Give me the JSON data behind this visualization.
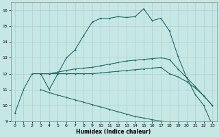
{
  "xlabel": "Humidex (Indice chaleur)",
  "bg_color": "#c5e8e5",
  "grid_color": "#b0cece",
  "line_color": "#1a6b65",
  "xlim": [
    -0.5,
    23.5
  ],
  "ylim": [
    9.0,
    16.5
  ],
  "xticks": [
    0,
    1,
    2,
    3,
    4,
    5,
    6,
    7,
    8,
    9,
    10,
    11,
    12,
    13,
    14,
    15,
    16,
    17,
    18,
    19,
    20,
    21,
    22,
    23
  ],
  "yticks": [
    9,
    10,
    11,
    12,
    13,
    14,
    15,
    16
  ],
  "line1_x": [
    0,
    1,
    2,
    3,
    4,
    5,
    6,
    7,
    8,
    9,
    10,
    11,
    12,
    13,
    14,
    15,
    16,
    17,
    18,
    19,
    20,
    21,
    22,
    23
  ],
  "line1_y": [
    9.5,
    11.0,
    12.0,
    12.0,
    11.0,
    12.0,
    13.0,
    13.5,
    14.4,
    15.25,
    15.5,
    15.5,
    15.6,
    15.55,
    15.6,
    16.1,
    15.35,
    15.5,
    14.7,
    13.1,
    11.75,
    10.7,
    10.0,
    8.75
  ],
  "line2_x": [
    3,
    4,
    5,
    6,
    7,
    8,
    9,
    10,
    11,
    12,
    13,
    14,
    15,
    16,
    17,
    18,
    19,
    20,
    21,
    22,
    23
  ],
  "line2_y": [
    12.0,
    12.0,
    12.1,
    12.2,
    12.3,
    12.35,
    12.4,
    12.5,
    12.6,
    12.7,
    12.8,
    12.85,
    12.9,
    12.95,
    13.0,
    12.9,
    12.3,
    11.75,
    11.2,
    10.6,
    10.0
  ],
  "line3_x": [
    3,
    4,
    5,
    6,
    7,
    8,
    9,
    10,
    11,
    12,
    13,
    14,
    15,
    16,
    17,
    18,
    19,
    20,
    21,
    22,
    23
  ],
  "line3_y": [
    12.0,
    12.0,
    12.0,
    12.0,
    12.0,
    12.0,
    12.0,
    12.05,
    12.1,
    12.15,
    12.2,
    12.25,
    12.3,
    12.35,
    12.4,
    12.0,
    11.8,
    11.5,
    11.1,
    10.6,
    10.0
  ],
  "line4_x": [
    3,
    4,
    5,
    6,
    7,
    8,
    9,
    10,
    11,
    12,
    13,
    14,
    15,
    16,
    17,
    18,
    19,
    20,
    21,
    22,
    23
  ],
  "line4_y": [
    11.0,
    10.8,
    10.65,
    10.5,
    10.35,
    10.2,
    10.05,
    9.9,
    9.75,
    9.6,
    9.45,
    9.3,
    9.2,
    9.1,
    9.0,
    8.95,
    8.9,
    8.85,
    8.8,
    8.75,
    8.75
  ]
}
